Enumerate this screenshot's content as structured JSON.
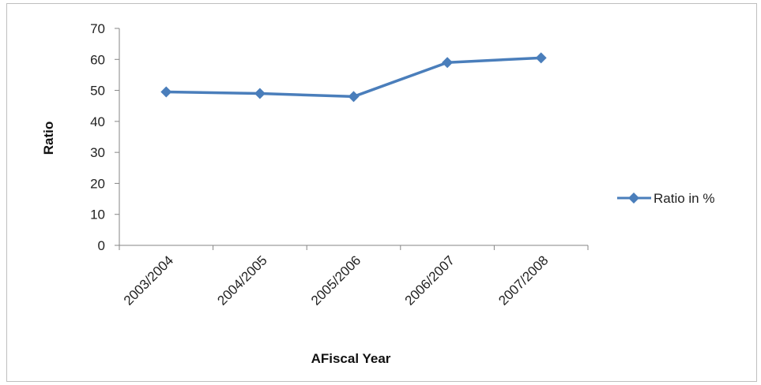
{
  "chart_data": {
    "type": "line",
    "categories": [
      "2003/2004",
      "2004/2005",
      "2005/2006",
      "2006/2007",
      "2007/2008"
    ],
    "series": [
      {
        "name": "Ratio in %",
        "values": [
          49.5,
          49.0,
          48.0,
          59.0,
          60.5
        ],
        "color": "#4a7ebb"
      }
    ],
    "title": "",
    "xlabel": "AFiscal Year",
    "ylabel": "Ratio",
    "ylim": [
      0,
      70
    ],
    "yticks": [
      "0",
      "10",
      "20",
      "30",
      "40",
      "50",
      "60",
      "70"
    ],
    "grid": false,
    "legend_position": "right",
    "marker": "diamond"
  }
}
